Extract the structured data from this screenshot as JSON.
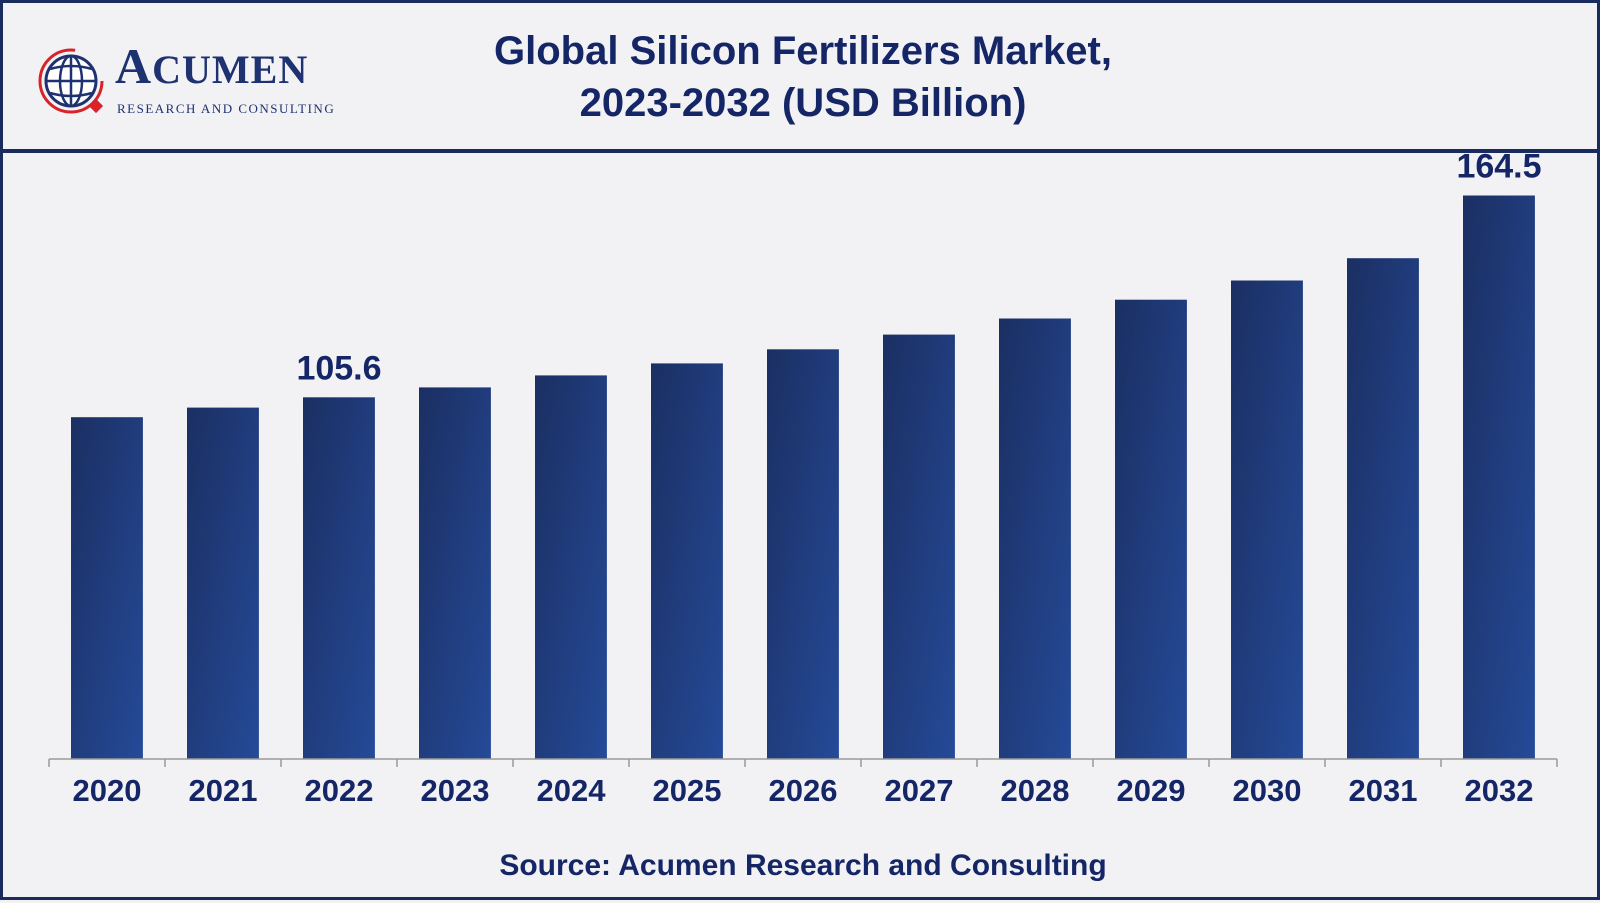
{
  "brand": {
    "name": "Acumen",
    "tagline": "RESEARCH AND CONSULTING"
  },
  "colors": {
    "bar_top": "#1b2f62",
    "bar_bottom": "#254a98",
    "text": "#152667",
    "frame": "#1a2b5e"
  },
  "chart_data": {
    "type": "bar",
    "title": "Global Silicon Fertilizers Market, 2023-2032 (USD Billion)",
    "title_lines": [
      "Global Silicon Fertilizers Market,",
      "2023-2032 (USD Billion)"
    ],
    "categories": [
      "2020",
      "2021",
      "2022",
      "2023",
      "2024",
      "2025",
      "2026",
      "2027",
      "2028",
      "2029",
      "2030",
      "2031",
      "2032"
    ],
    "values": [
      99.8,
      102.6,
      105.6,
      108.5,
      112.0,
      115.5,
      119.6,
      123.9,
      128.6,
      134.1,
      139.7,
      146.2,
      164.5
    ],
    "data_labels": [
      {
        "category": "2022",
        "text": "105.6"
      },
      {
        "category": "2032",
        "text": "164.5"
      }
    ],
    "xlabel": "",
    "ylabel": "",
    "ylim": [
      0,
      174
    ],
    "grid": false,
    "legend": "none",
    "source": "Source: Acumen Research and Consulting"
  }
}
